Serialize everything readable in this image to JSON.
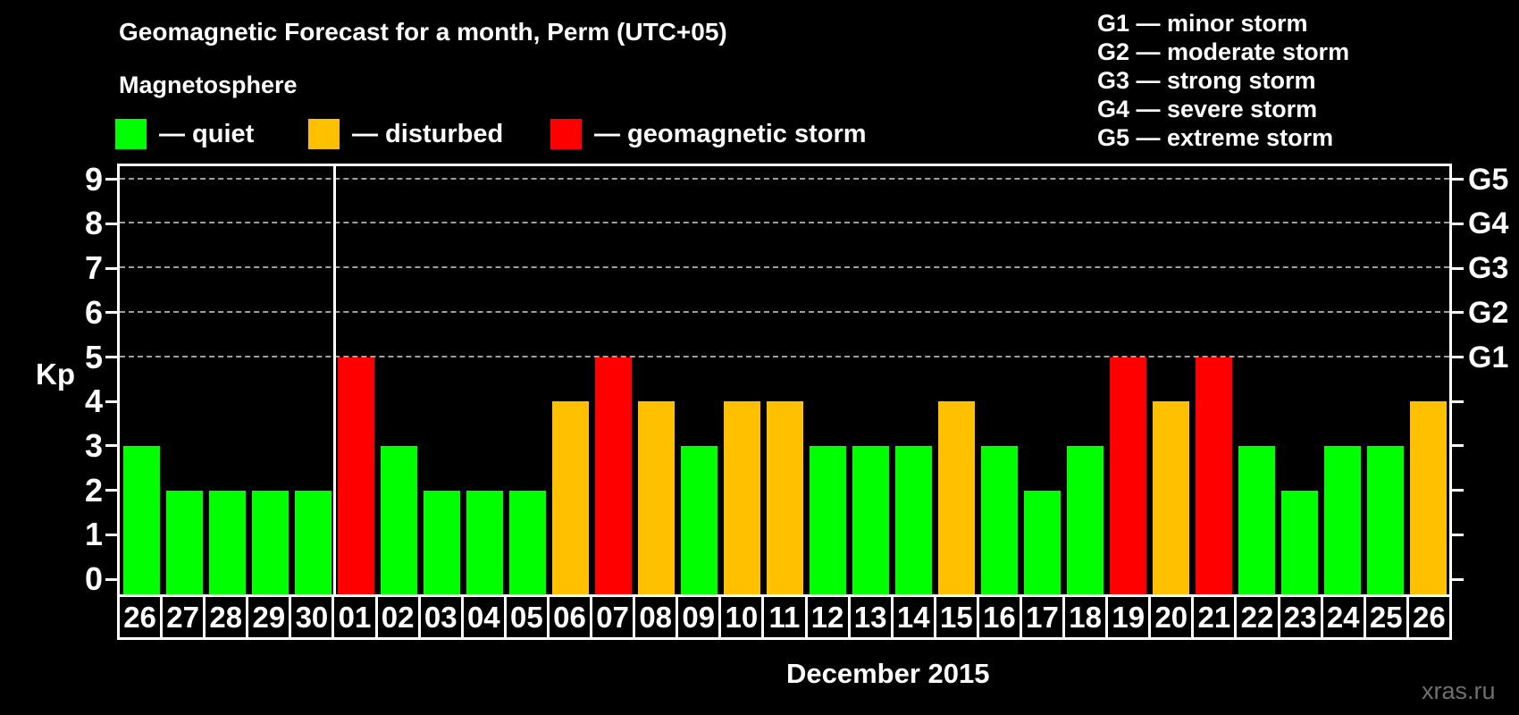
{
  "header": {
    "title": "Geomagnetic Forecast for a month, Perm (UTC+05)"
  },
  "magnetosphere_legend": {
    "title": "Magnetosphere",
    "items": [
      {
        "status": "quiet",
        "label": "— quiet",
        "color": "#00ff00"
      },
      {
        "status": "disturbed",
        "label": "— disturbed",
        "color": "#ffc000"
      },
      {
        "status": "storm",
        "label": "— geomagnetic storm",
        "color": "#ff0000"
      }
    ]
  },
  "g_scale_legend": {
    "lines": [
      "G1 — minor storm",
      "G2 — moderate storm",
      "G3 — strong storm",
      "G4 — severe storm",
      "G5 — extreme storm"
    ]
  },
  "axes": {
    "y_title": "Kp",
    "x_title": "December 2015",
    "y_ticks": [
      0,
      1,
      2,
      3,
      4,
      5,
      6,
      7,
      8,
      9
    ],
    "right_axis_labels": [
      {
        "level": 5,
        "label": "G1"
      },
      {
        "level": 6,
        "label": "G2"
      },
      {
        "level": 7,
        "label": "G3"
      },
      {
        "level": 8,
        "label": "G4"
      },
      {
        "level": 9,
        "label": "G5"
      }
    ]
  },
  "watermark": "xras.ru",
  "chart_data": {
    "type": "bar",
    "title": "Geomagnetic Forecast for a month, Perm (UTC+05)",
    "xlabel": "December 2015",
    "ylabel": "Kp",
    "ylim": [
      0,
      9
    ],
    "grid": "dashed horizontal at levels 5-9 only",
    "legend_position": "top-left (quiet/disturbed/storm) and top-right (G1-G5)",
    "gridline_levels": [
      5,
      6,
      7,
      8,
      9
    ],
    "month_separator_after_index": 4,
    "status_colors": {
      "quiet": "#00ff00",
      "disturbed": "#ffc000",
      "storm": "#ff0000"
    },
    "categories": [
      "26",
      "27",
      "28",
      "29",
      "30",
      "01",
      "02",
      "03",
      "04",
      "05",
      "06",
      "07",
      "08",
      "09",
      "10",
      "11",
      "12",
      "13",
      "14",
      "15",
      "16",
      "17",
      "18",
      "19",
      "20",
      "21",
      "22",
      "23",
      "24",
      "25",
      "26"
    ],
    "values": [
      3,
      2,
      2,
      2,
      2,
      5,
      3,
      2,
      2,
      2,
      4,
      5,
      4,
      3,
      4,
      4,
      3,
      3,
      3,
      4,
      3,
      2,
      3,
      5,
      4,
      5,
      3,
      2,
      3,
      3,
      4
    ],
    "statuses": [
      "quiet",
      "quiet",
      "quiet",
      "quiet",
      "quiet",
      "storm",
      "quiet",
      "quiet",
      "quiet",
      "quiet",
      "disturbed",
      "storm",
      "disturbed",
      "quiet",
      "disturbed",
      "disturbed",
      "quiet",
      "quiet",
      "quiet",
      "disturbed",
      "quiet",
      "quiet",
      "quiet",
      "storm",
      "disturbed",
      "storm",
      "quiet",
      "quiet",
      "quiet",
      "quiet",
      "disturbed"
    ]
  }
}
